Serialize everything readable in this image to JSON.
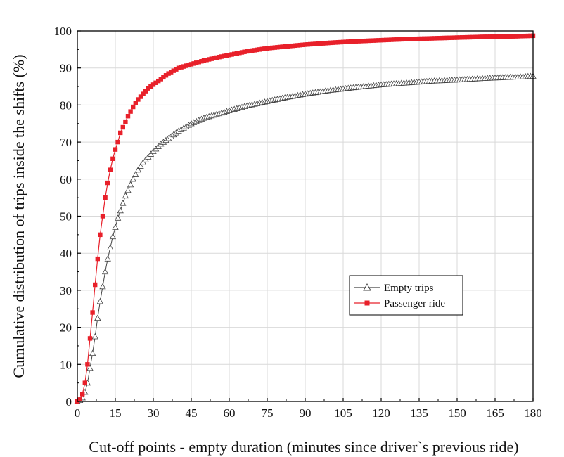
{
  "chart_data": {
    "type": "line",
    "title": "",
    "xlabel": "Cut-off points - empty duration (minutes since driver`s previous ride)",
    "ylabel": "Cumulative distribution of trips inside the shifts (%)",
    "xlim": [
      0,
      180
    ],
    "ylim": [
      0,
      100
    ],
    "xticks": [
      0,
      15,
      30,
      45,
      60,
      75,
      90,
      105,
      120,
      135,
      150,
      165,
      180
    ],
    "yticks": [
      0,
      10,
      20,
      30,
      40,
      50,
      60,
      70,
      80,
      90,
      100
    ],
    "grid": true,
    "legend_position": "center-right",
    "series": [
      {
        "name": "Empty trips",
        "color": "#444444",
        "marker": "open-triangle",
        "x": [
          0,
          1,
          2,
          3,
          4,
          5,
          6,
          7,
          8,
          9,
          10,
          11,
          12,
          13,
          14,
          15,
          16,
          17,
          18,
          19,
          20,
          22,
          24,
          26,
          28,
          30,
          33,
          36,
          40,
          45,
          50,
          55,
          60,
          67,
          75,
          82,
          90,
          100,
          110,
          120,
          130,
          140,
          150,
          160,
          170,
          180
        ],
        "y": [
          0,
          0.3,
          1.0,
          2.5,
          5.0,
          9.0,
          13.0,
          17.5,
          22.5,
          27.0,
          31.0,
          35.0,
          38.5,
          41.5,
          44.5,
          47.0,
          49.5,
          51.5,
          53.5,
          55.5,
          57.0,
          60.0,
          62.5,
          64.5,
          66.0,
          67.5,
          69.5,
          71.0,
          73.0,
          75.0,
          76.5,
          77.5,
          78.5,
          79.8,
          81.0,
          82.0,
          83.0,
          84.0,
          84.8,
          85.5,
          86.0,
          86.5,
          86.8,
          87.2,
          87.5,
          87.8
        ]
      },
      {
        "name": "Passenger ride",
        "color": "#e8202a",
        "marker": "filled-square",
        "x": [
          0,
          1,
          2,
          3,
          4,
          5,
          6,
          7,
          8,
          9,
          10,
          11,
          12,
          13,
          14,
          15,
          16,
          17,
          18,
          19,
          20,
          22,
          24,
          26,
          28,
          30,
          33,
          36,
          40,
          45,
          50,
          55,
          60,
          67,
          75,
          82,
          90,
          100,
          110,
          120,
          130,
          140,
          150,
          160,
          170,
          180
        ],
        "y": [
          0,
          0.5,
          2.0,
          5.0,
          10.0,
          17.0,
          24.0,
          31.5,
          38.5,
          45.0,
          50.0,
          55.0,
          59.0,
          62.5,
          65.5,
          68.0,
          70.0,
          72.5,
          74.0,
          75.5,
          77.0,
          79.5,
          81.5,
          83.0,
          84.5,
          85.5,
          87.0,
          88.5,
          90.0,
          91.0,
          92.0,
          92.8,
          93.5,
          94.5,
          95.3,
          95.8,
          96.3,
          96.8,
          97.2,
          97.5,
          97.8,
          98.0,
          98.2,
          98.4,
          98.5,
          98.7
        ]
      }
    ]
  }
}
